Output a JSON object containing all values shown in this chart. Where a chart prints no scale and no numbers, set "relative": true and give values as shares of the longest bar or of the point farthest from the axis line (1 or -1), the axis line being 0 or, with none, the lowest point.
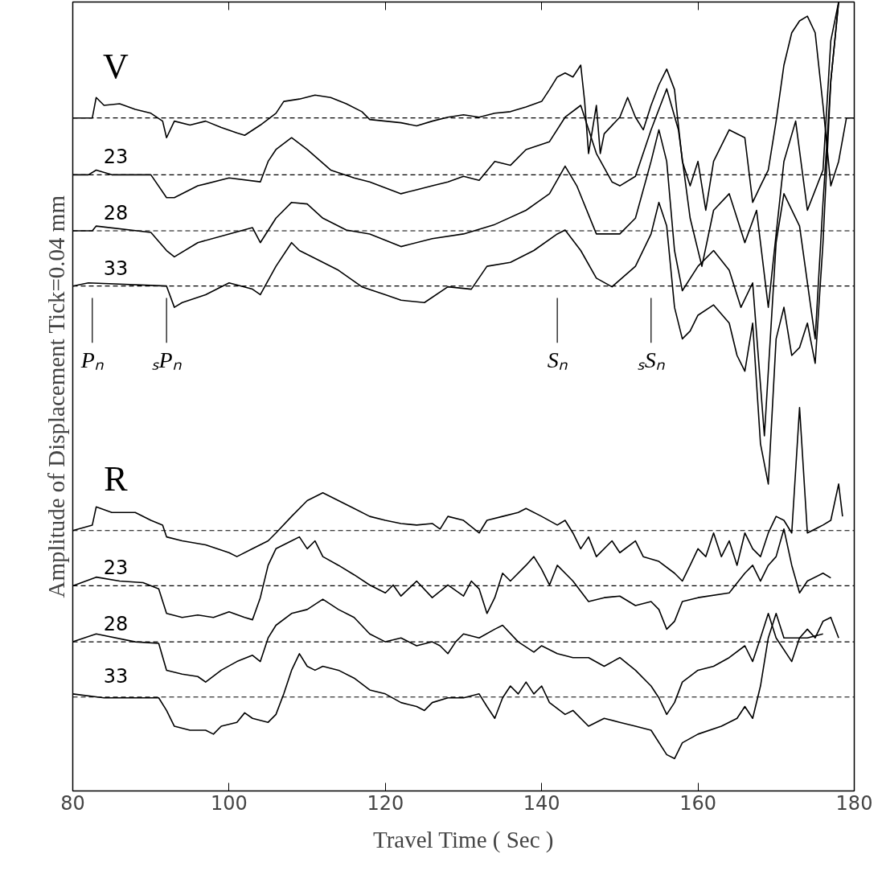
{
  "chart_data": {
    "type": "line",
    "relative": true,
    "xlabel": "Travel Time ( Sec )",
    "ylabel": "Amplitude of Displacement Tick=0.04 mm",
    "xlim": [
      80,
      180
    ],
    "xticks": [
      80,
      100,
      120,
      140,
      160,
      180
    ],
    "grid": false,
    "marker": "none",
    "line_style": "solid",
    "series": [
      {
        "color": "#000000",
        "name": "V",
        "x": [
          80,
          82.5,
          83,
          84,
          86,
          88,
          90,
          91.5,
          92,
          93,
          95,
          97,
          99,
          101,
          102,
          104,
          106,
          107,
          109,
          111,
          113,
          115,
          117,
          118,
          120,
          122,
          124,
          126,
          128,
          130,
          132,
          134,
          136,
          138,
          140,
          141,
          142,
          143,
          144,
          145,
          145.5,
          146,
          147,
          147.5,
          148,
          150,
          151,
          152,
          153,
          154,
          155,
          156,
          157,
          158,
          159,
          160,
          161,
          162,
          164,
          166,
          167,
          168,
          169,
          170,
          171,
          172,
          173,
          174,
          175,
          176,
          177,
          178,
          179,
          180
        ],
        "values": [
          0.853,
          0.853,
          0.879,
          0.869,
          0.871,
          0.864,
          0.859,
          0.849,
          0.828,
          0.849,
          0.844,
          0.849,
          0.841,
          0.834,
          0.831,
          0.844,
          0.859,
          0.874,
          0.877,
          0.882,
          0.879,
          0.871,
          0.861,
          0.851,
          0.849,
          0.847,
          0.843,
          0.849,
          0.854,
          0.857,
          0.854,
          0.859,
          0.861,
          0.867,
          0.874,
          0.889,
          0.905,
          0.91,
          0.905,
          0.92,
          0.874,
          0.808,
          0.869,
          0.808,
          0.833,
          0.854,
          0.879,
          0.854,
          0.838,
          0.869,
          0.895,
          0.915,
          0.889,
          0.798,
          0.767,
          0.798,
          0.736,
          0.798,
          0.838,
          0.828,
          0.746,
          0.767,
          0.787,
          0.849,
          0.92,
          0.961,
          0.976,
          0.982,
          0.961,
          0.869,
          0.767,
          0.798,
          0.853,
          0.853
        ]
      },
      {
        "color": "#000000",
        "name": "23",
        "x": [
          80,
          82,
          83,
          85,
          90,
          92,
          93,
          96,
          100,
          104,
          105,
          106,
          108,
          110,
          113,
          116,
          118,
          122,
          124,
          126,
          128,
          130,
          132,
          134,
          136,
          138,
          141,
          143,
          145,
          147,
          149,
          150,
          152,
          154,
          156,
          157.5,
          159,
          160.5,
          162,
          164,
          166,
          167.5,
          169,
          171,
          172.5,
          174,
          176,
          177,
          178
        ],
        "values": [
          0.781,
          0.781,
          0.787,
          0.781,
          0.781,
          0.752,
          0.752,
          0.767,
          0.777,
          0.772,
          0.798,
          0.813,
          0.828,
          0.813,
          0.787,
          0.777,
          0.772,
          0.757,
          0.762,
          0.767,
          0.772,
          0.779,
          0.774,
          0.798,
          0.793,
          0.813,
          0.823,
          0.854,
          0.869,
          0.808,
          0.772,
          0.767,
          0.779,
          0.838,
          0.89,
          0.838,
          0.726,
          0.665,
          0.736,
          0.757,
          0.695,
          0.736,
          0.613,
          0.798,
          0.849,
          0.736,
          0.787,
          0.951,
          1.0
        ]
      },
      {
        "color": "#000000",
        "name": "28",
        "x": [
          80,
          82.5,
          83,
          90,
          92,
          93,
          96,
          100,
          103,
          104,
          106,
          108,
          110,
          112,
          115,
          118,
          122,
          126,
          130,
          134,
          138,
          141,
          143,
          144.5,
          147,
          150,
          152,
          154,
          155,
          156,
          157,
          158,
          160,
          162,
          164,
          165.5,
          167,
          168.5,
          170,
          171,
          173,
          175,
          176,
          177,
          178
        ],
        "values": [
          0.71,
          0.71,
          0.716,
          0.708,
          0.685,
          0.677,
          0.695,
          0.706,
          0.714,
          0.695,
          0.726,
          0.746,
          0.744,
          0.726,
          0.711,
          0.706,
          0.69,
          0.7,
          0.706,
          0.718,
          0.736,
          0.757,
          0.792,
          0.767,
          0.706,
          0.706,
          0.726,
          0.798,
          0.838,
          0.798,
          0.685,
          0.634,
          0.665,
          0.685,
          0.66,
          0.613,
          0.644,
          0.45,
          0.695,
          0.757,
          0.716,
          0.573,
          0.746,
          0.9,
          1.0
        ]
      },
      {
        "color": "#000000",
        "name": "33",
        "x": [
          80,
          82,
          92,
          93,
          94,
          97,
          100,
          103,
          104,
          106,
          108,
          109,
          111,
          114,
          117,
          120,
          122,
          125,
          128,
          131,
          133,
          136,
          139,
          142,
          143,
          145,
          147,
          149,
          152,
          154,
          155,
          156,
          157,
          158,
          159,
          160,
          162,
          164,
          165,
          166,
          167,
          168,
          169,
          170,
          171,
          172,
          173,
          174,
          175,
          176,
          177,
          178
        ],
        "values": [
          0.64,
          0.644,
          0.64,
          0.613,
          0.619,
          0.629,
          0.644,
          0.636,
          0.629,
          0.665,
          0.695,
          0.685,
          0.675,
          0.66,
          0.639,
          0.629,
          0.622,
          0.619,
          0.639,
          0.636,
          0.665,
          0.67,
          0.685,
          0.706,
          0.711,
          0.685,
          0.65,
          0.639,
          0.665,
          0.706,
          0.746,
          0.716,
          0.613,
          0.573,
          0.583,
          0.603,
          0.616,
          0.593,
          0.552,
          0.532,
          0.593,
          0.44,
          0.389,
          0.573,
          0.613,
          0.552,
          0.562,
          0.593,
          0.542,
          0.695,
          0.9,
          1.0
        ]
      },
      {
        "color": "#000000",
        "name": "R",
        "x": [
          80,
          82.5,
          83,
          85,
          88,
          90,
          91.5,
          92,
          94,
          97,
          100,
          101,
          103,
          105,
          106,
          108,
          110,
          112,
          114,
          116,
          118,
          120,
          122,
          124,
          126,
          127,
          128,
          130,
          132,
          133,
          135,
          137,
          138,
          140,
          142,
          143,
          144,
          145,
          146,
          147,
          149,
          150,
          152,
          153,
          155,
          157,
          158,
          159,
          160,
          161,
          162,
          163,
          164,
          165,
          166,
          167,
          168,
          169,
          170,
          171,
          172,
          173,
          174,
          176,
          177,
          178,
          178.5
        ],
        "values": [
          0.33,
          0.337,
          0.36,
          0.353,
          0.353,
          0.343,
          0.337,
          0.322,
          0.317,
          0.312,
          0.302,
          0.297,
          0.307,
          0.317,
          0.327,
          0.348,
          0.368,
          0.378,
          0.368,
          0.358,
          0.348,
          0.343,
          0.339,
          0.337,
          0.339,
          0.332,
          0.348,
          0.343,
          0.327,
          0.343,
          0.348,
          0.353,
          0.358,
          0.348,
          0.337,
          0.343,
          0.327,
          0.307,
          0.322,
          0.297,
          0.317,
          0.302,
          0.317,
          0.297,
          0.291,
          0.276,
          0.266,
          0.286,
          0.307,
          0.297,
          0.327,
          0.297,
          0.317,
          0.286,
          0.327,
          0.307,
          0.297,
          0.327,
          0.348,
          0.343,
          0.327,
          0.486,
          0.327,
          0.337,
          0.343,
          0.389,
          0.348
        ]
      },
      {
        "color": "#000000",
        "name": "23",
        "x": [
          80,
          83,
          86,
          89,
          91,
          92,
          94,
          96,
          98,
          100,
          102,
          103,
          104,
          105,
          106,
          108,
          109,
          110,
          111,
          112,
          114,
          116,
          118,
          120,
          121,
          122,
          124,
          126,
          128,
          130,
          131,
          132,
          133,
          134,
          135,
          136,
          138,
          139,
          140,
          141,
          142,
          144,
          146,
          148,
          150,
          152,
          154,
          155,
          156,
          157,
          158,
          160,
          164,
          166,
          167,
          168,
          169,
          170,
          171,
          172,
          173,
          174,
          176,
          177
        ],
        "values": [
          0.26,
          0.271,
          0.266,
          0.264,
          0.256,
          0.225,
          0.22,
          0.223,
          0.22,
          0.227,
          0.22,
          0.217,
          0.245,
          0.286,
          0.307,
          0.317,
          0.322,
          0.307,
          0.317,
          0.297,
          0.286,
          0.274,
          0.261,
          0.251,
          0.261,
          0.247,
          0.266,
          0.245,
          0.261,
          0.247,
          0.266,
          0.256,
          0.225,
          0.245,
          0.276,
          0.266,
          0.286,
          0.297,
          0.281,
          0.261,
          0.286,
          0.266,
          0.24,
          0.245,
          0.247,
          0.235,
          0.24,
          0.23,
          0.205,
          0.215,
          0.24,
          0.245,
          0.251,
          0.276,
          0.286,
          0.266,
          0.286,
          0.297,
          0.332,
          0.286,
          0.251,
          0.266,
          0.276,
          0.27
        ]
      },
      {
        "color": "#000000",
        "name": "28",
        "x": [
          80,
          83,
          88,
          91,
          92,
          94,
          96,
          97,
          99,
          101,
          103,
          104,
          105,
          106,
          108,
          110,
          112,
          114,
          116,
          118,
          120,
          122,
          124,
          126,
          127,
          128,
          129,
          130,
          132,
          134,
          135,
          137,
          139,
          140,
          142,
          144,
          146,
          148,
          150,
          152,
          154,
          155,
          156,
          157,
          158,
          160,
          162,
          164,
          166,
          167,
          168,
          169,
          170,
          172,
          173,
          174,
          175,
          176,
          177,
          178
        ],
        "values": [
          0.189,
          0.199,
          0.189,
          0.187,
          0.153,
          0.148,
          0.145,
          0.138,
          0.153,
          0.164,
          0.172,
          0.164,
          0.194,
          0.21,
          0.225,
          0.23,
          0.243,
          0.23,
          0.22,
          0.199,
          0.189,
          0.194,
          0.184,
          0.189,
          0.184,
          0.174,
          0.189,
          0.199,
          0.194,
          0.205,
          0.21,
          0.189,
          0.176,
          0.184,
          0.174,
          0.169,
          0.169,
          0.158,
          0.169,
          0.153,
          0.133,
          0.118,
          0.097,
          0.112,
          0.138,
          0.153,
          0.158,
          0.169,
          0.184,
          0.164,
          0.194,
          0.225,
          0.194,
          0.164,
          0.194,
          0.205,
          0.194,
          0.215,
          0.22,
          0.194
        ]
      },
      {
        "color": "#000000",
        "name": "33",
        "x": [
          80,
          84,
          91,
          92,
          93,
          95,
          97,
          98,
          99,
          101,
          102,
          103,
          105,
          106,
          107,
          108,
          109,
          110,
          111,
          112,
          114,
          116,
          118,
          120,
          122,
          124,
          125,
          126,
          128,
          130,
          132,
          133,
          134,
          135,
          136,
          137,
          138,
          139,
          140,
          141,
          143,
          144,
          146,
          148,
          150,
          152,
          154,
          156,
          157,
          158,
          160,
          163,
          165,
          166,
          167,
          168,
          169,
          170,
          171,
          172,
          174,
          176
        ],
        "values": [
          0.123,
          0.118,
          0.118,
          0.102,
          0.082,
          0.077,
          0.077,
          0.072,
          0.082,
          0.087,
          0.099,
          0.092,
          0.087,
          0.097,
          0.123,
          0.153,
          0.174,
          0.158,
          0.153,
          0.158,
          0.153,
          0.143,
          0.128,
          0.123,
          0.112,
          0.107,
          0.102,
          0.112,
          0.118,
          0.118,
          0.123,
          0.107,
          0.092,
          0.118,
          0.133,
          0.123,
          0.138,
          0.123,
          0.133,
          0.112,
          0.097,
          0.102,
          0.082,
          0.092,
          0.087,
          0.082,
          0.077,
          0.046,
          0.041,
          0.061,
          0.072,
          0.082,
          0.092,
          0.107,
          0.092,
          0.133,
          0.194,
          0.225,
          0.194,
          0.194,
          0.194,
          0.199
        ]
      }
    ],
    "ref_lines": [
      {
        "axis": "y",
        "value": 0.853,
        "line_style": "dashed"
      },
      {
        "axis": "y",
        "value": 0.781,
        "line_style": "dashed"
      },
      {
        "axis": "y",
        "value": 0.71,
        "line_style": "dashed"
      },
      {
        "axis": "y",
        "value": 0.64,
        "line_style": "dashed"
      },
      {
        "axis": "y",
        "value": 0.33,
        "line_style": "dashed"
      },
      {
        "axis": "y",
        "value": 0.26,
        "line_style": "dashed"
      },
      {
        "axis": "y",
        "value": 0.189,
        "line_style": "dashed"
      },
      {
        "axis": "y",
        "value": 0.119,
        "line_style": "dashed"
      },
      {
        "axis": "x",
        "value": 82.5,
        "label": "Pₙ"
      },
      {
        "axis": "x",
        "value": 92,
        "label": "ₛPₙ"
      },
      {
        "axis": "x",
        "value": 142,
        "label": "Sₙ"
      },
      {
        "axis": "x",
        "value": 154,
        "label": "ₛSₙ"
      }
    ]
  }
}
